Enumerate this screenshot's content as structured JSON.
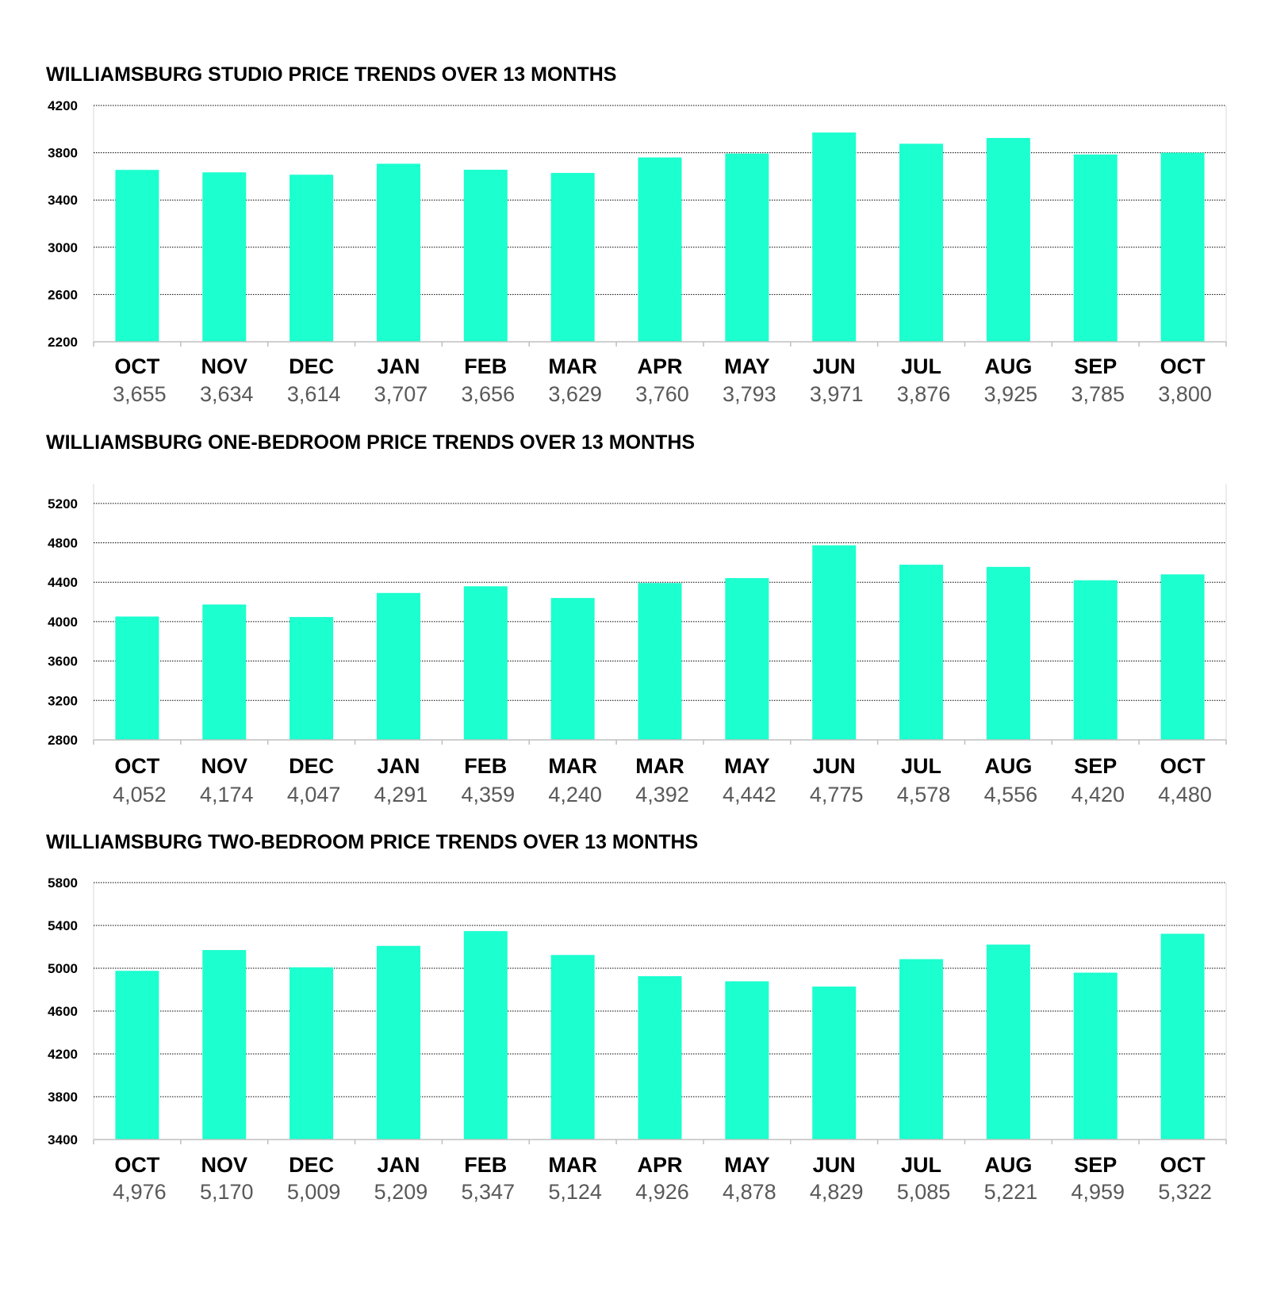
{
  "chart_data": [
    {
      "type": "bar",
      "title": "WILLIAMSBURG STUDIO PRICE TRENDS OVER 13 MONTHS",
      "categories": [
        "OCT",
        "NOV",
        "DEC",
        "JAN",
        "FEB",
        "MAR",
        "APR",
        "MAY",
        "JUN",
        "JUL",
        "AUG",
        "SEP",
        "OCT"
      ],
      "values": [
        3655,
        3634,
        3614,
        3707,
        3656,
        3629,
        3760,
        3793,
        3971,
        3876,
        3925,
        3785,
        3800
      ],
      "value_labels": [
        "3,655",
        "3,634",
        "3,614",
        "3,707",
        "3,656",
        "3,629",
        "3,760",
        "3,793",
        "3,971",
        "3,876",
        "3,925",
        "3,785",
        "3,800"
      ],
      "yticks": [
        2200,
        2600,
        3000,
        3400,
        3800,
        4200
      ],
      "ylim": [
        2200,
        4200
      ],
      "xlabel": "",
      "ylabel": "",
      "grid": true,
      "bar_color": "#1CFFCF"
    },
    {
      "type": "bar",
      "title": "WILLIAMSBURG ONE-BEDROOM PRICE TRENDS OVER 13 MONTHS",
      "categories": [
        "OCT",
        "NOV",
        "DEC",
        "JAN",
        "FEB",
        "MAR",
        "MAR",
        "MAY",
        "JUN",
        "JUL",
        "AUG",
        "SEP",
        "OCT"
      ],
      "values": [
        4052,
        4174,
        4047,
        4291,
        4359,
        4240,
        4392,
        4442,
        4775,
        4578,
        4556,
        4420,
        4480
      ],
      "value_labels": [
        "4,052",
        "4,174",
        "4,047",
        "4,291",
        "4,359",
        "4,240",
        "4,392",
        "4,442",
        "4,775",
        "4,578",
        "4,556",
        "4,420",
        "4,480"
      ],
      "yticks": [
        2800,
        3200,
        3600,
        4000,
        4400,
        4800,
        5200
      ],
      "ylim": [
        2800,
        5400
      ],
      "xlabel": "",
      "ylabel": "",
      "grid": true,
      "bar_color": "#1CFFCF"
    },
    {
      "type": "bar",
      "title": "WILLIAMSBURG TWO-BEDROOM PRICE TRENDS OVER 13 MONTHS",
      "categories": [
        "OCT",
        "NOV",
        "DEC",
        "JAN",
        "FEB",
        "MAR",
        "APR",
        "MAY",
        "JUN",
        "JUL",
        "AUG",
        "SEP",
        "OCT"
      ],
      "values": [
        4976,
        5170,
        5009,
        5209,
        5347,
        5124,
        4926,
        4878,
        4829,
        5085,
        5221,
        4959,
        5322
      ],
      "value_labels": [
        "4,976",
        "5,170",
        "5,009",
        "5,209",
        "5,347",
        "5,124",
        "4,926",
        "4,878",
        "4,829",
        "5,085",
        "5,221",
        "4,959",
        "5,322"
      ],
      "yticks": [
        3400,
        3800,
        4200,
        4600,
        5000,
        5400,
        5800
      ],
      "ylim": [
        3400,
        5800
      ],
      "xlabel": "",
      "ylabel": "",
      "grid": true,
      "bar_color": "#1CFFCF"
    }
  ]
}
